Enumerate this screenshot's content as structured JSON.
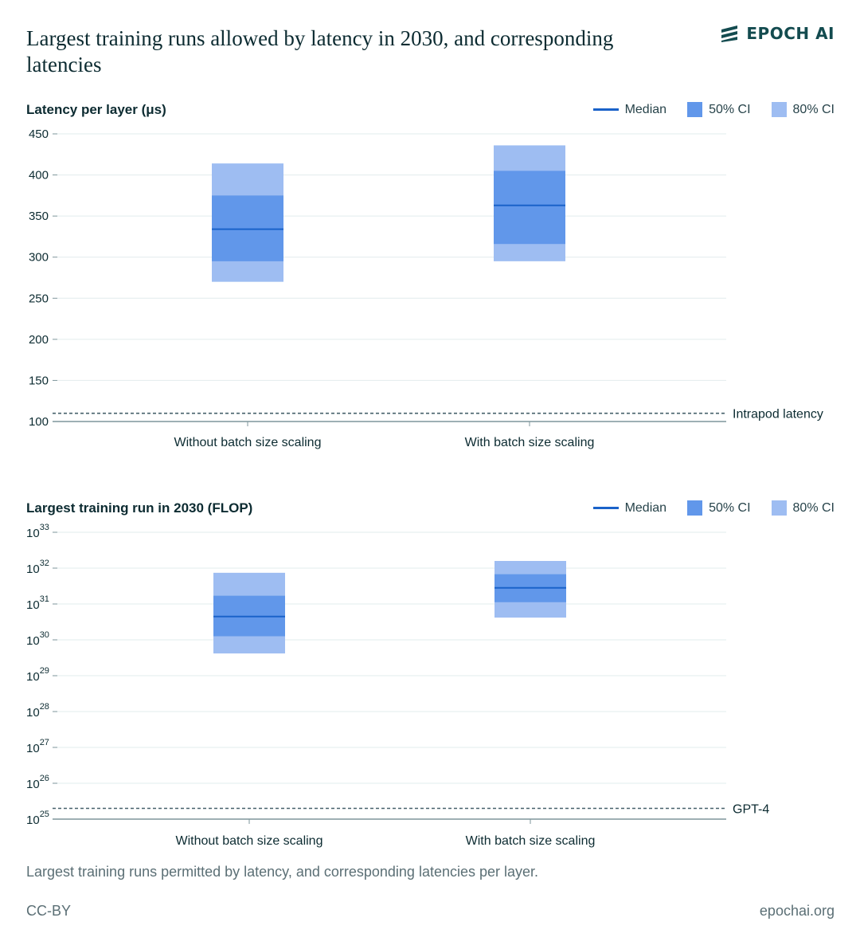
{
  "header": {
    "title": "Largest training runs allowed by latency in 2030, and corresponding latencies",
    "logo_text": "EPOCH AI"
  },
  "legend": {
    "median": "Median",
    "ci50": "50% CI",
    "ci80": "80% CI"
  },
  "colors": {
    "median": "#1a62c9",
    "ci50": "#6197ea",
    "ci80": "#9ebdf2",
    "grid": "#e2eced",
    "axis": "#7e969b",
    "reference": "#46606a",
    "text": "#0c2b31",
    "muted": "#5b6f75"
  },
  "chart_data": [
    {
      "type": "bar",
      "title": "Latency per layer (μs)",
      "categories": [
        "Without batch size scaling",
        "With batch size scaling"
      ],
      "ylim": [
        100,
        450
      ],
      "yticks": [
        100,
        150,
        200,
        250,
        300,
        350,
        400,
        450
      ],
      "scale": "linear",
      "series": [
        {
          "name": "Without batch size scaling",
          "median": 334,
          "ci50": [
            295,
            375
          ],
          "ci80": [
            270,
            414
          ]
        },
        {
          "name": "With batch size scaling",
          "median": 363,
          "ci50": [
            316,
            405
          ],
          "ci80": [
            295,
            436
          ]
        }
      ],
      "reference_line": {
        "label": "Intrapod latency",
        "value": 110
      },
      "grid": true,
      "legend_position": "top-right"
    },
    {
      "type": "bar",
      "title": "Largest training run in 2030 (FLOP)",
      "categories": [
        "Without batch size scaling",
        "With batch size scaling"
      ],
      "ylim": [
        25,
        33
      ],
      "yticks": [
        25,
        26,
        27,
        28,
        29,
        30,
        31,
        32,
        33
      ],
      "tick_base": "10",
      "scale": "log10",
      "series": [
        {
          "name": "Without batch size scaling",
          "median": 30.65,
          "ci50": [
            30.1,
            31.23
          ],
          "ci80": [
            29.62,
            31.87
          ]
        },
        {
          "name": "With batch size scaling",
          "median": 31.45,
          "ci50": [
            31.05,
            31.83
          ],
          "ci80": [
            30.62,
            32.2
          ]
        }
      ],
      "reference_line": {
        "label": "GPT-4",
        "value": 25.3
      },
      "grid": true,
      "legend_position": "top-right"
    }
  ],
  "caption": "Largest training runs permitted by latency, and corresponding latencies per layer.",
  "footer": {
    "license": "CC-BY",
    "site": "epochai.org"
  }
}
